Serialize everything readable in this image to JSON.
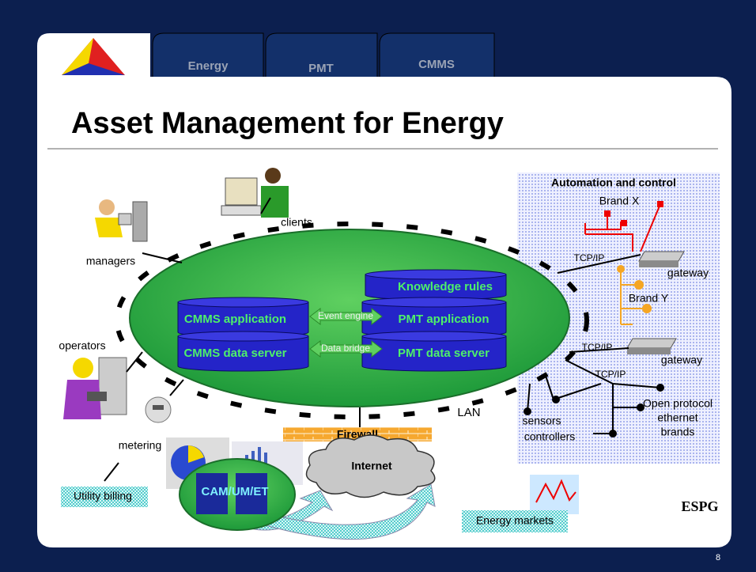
{
  "tabs": [
    "Energy",
    "PMT",
    "CMMS"
  ],
  "title": "Asset Management for Energy",
  "page_number": "8",
  "logo": "ESPG",
  "core": {
    "knowledge": "Knowledge rules",
    "cmms_app": "CMMS application",
    "pmt_app": "PMT application",
    "cmms_data": "CMMS data server",
    "pmt_data": "PMT data server",
    "event": "Event engine",
    "bridge": "Data bridge"
  },
  "lan": "LAN",
  "users": {
    "clients": "clients",
    "managers": "managers",
    "operators": "operators",
    "metering": "metering",
    "billing": "Utility billing"
  },
  "external": {
    "cam": "CAM/UM/ET",
    "internet": "Internet",
    "firewall": "Firewall",
    "markets": "Energy markets"
  },
  "automation": {
    "title": "Automation and control",
    "brand_x": "Brand X",
    "brand_y": "Brand Y",
    "tcp": [
      "TCP/IP",
      "TCP/IP",
      "TCP/IP"
    ],
    "gateways": [
      "gateway",
      "gateway"
    ],
    "field": [
      "sensors",
      "controllers"
    ],
    "open": [
      "Open protocol",
      "ethernet",
      "brands"
    ]
  }
}
